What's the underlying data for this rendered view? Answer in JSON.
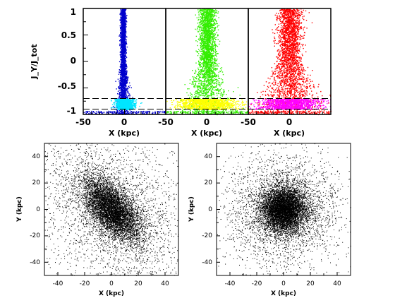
{
  "chart_data": [
    {
      "type": "scatter",
      "panel": "top-left",
      "xlabel": "X (kpc)",
      "ylabel": "J_Y/J_tot",
      "xlim": [
        -50,
        50
      ],
      "ylim": [
        -1,
        1
      ],
      "xticks": [
        "-50",
        "0"
      ],
      "yticks": [
        "-1",
        "-0.5",
        "0",
        "0.5",
        "1"
      ],
      "thresholds": [
        -0.7,
        -0.9
      ],
      "series": [
        {
          "color": "#0000cc",
          "x_center": -2,
          "x_spread": 3,
          "y_range": [
            -1,
            1
          ]
        },
        {
          "color": "#00e5ff",
          "x_center": 0,
          "x_spread": 9,
          "y_range": [
            -0.9,
            -0.7
          ]
        }
      ]
    },
    {
      "type": "scatter",
      "panel": "top-middle",
      "xlabel": "X (kpc)",
      "xlim": [
        -50,
        50
      ],
      "ylim": [
        -1,
        1
      ],
      "xticks": [
        "-50",
        "0"
      ],
      "thresholds": [
        -0.7,
        -0.9
      ],
      "series": [
        {
          "color": "#33ee00",
          "x_center": 0,
          "x_spread": 10,
          "y_range": [
            -1,
            1
          ]
        },
        {
          "color": "#ffff00",
          "x_center": 0,
          "x_spread": 30,
          "y_range": [
            -0.9,
            -0.7
          ]
        }
      ]
    },
    {
      "type": "scatter",
      "panel": "top-right",
      "xlabel": "X (kpc)",
      "xlim": [
        -50,
        50
      ],
      "ylim": [
        -1,
        1
      ],
      "xticks": [
        "-50",
        "0"
      ],
      "thresholds": [
        -0.7,
        -0.9
      ],
      "series": [
        {
          "color": "#ff0000",
          "x_center": 0,
          "x_spread": 14,
          "y_range": [
            -1,
            1
          ]
        },
        {
          "color": "#ff00ff",
          "x_center": 0,
          "x_spread": 30,
          "y_range": [
            -0.9,
            -0.7
          ]
        }
      ]
    },
    {
      "type": "scatter",
      "panel": "bottom-left",
      "xlabel": "X (kpc)",
      "ylabel": "Y (kpc)",
      "xlim": [
        -50,
        50
      ],
      "ylim": [
        -50,
        50
      ],
      "xticks": [
        "-40",
        "-20",
        "0",
        "20",
        "40"
      ],
      "yticks": [
        "-40",
        "-20",
        "0",
        "20",
        "40"
      ],
      "series": [
        {
          "color": "#000000",
          "shape": "elongated bar",
          "orientation_deg": -50,
          "major_scale": 14,
          "minor_scale": 7
        }
      ]
    },
    {
      "type": "scatter",
      "panel": "bottom-right",
      "xlabel": "X (kpc)",
      "ylabel": "Y (kpc)",
      "xlim": [
        -50,
        50
      ],
      "ylim": [
        -50,
        50
      ],
      "xticks": [
        "-40",
        "-20",
        "0",
        "20",
        "40"
      ],
      "yticks": [
        "-40",
        "-20",
        "0",
        "20",
        "40"
      ],
      "series": [
        {
          "color": "#000000",
          "shape": "round spheroid",
          "major_scale": 8,
          "minor_scale": 8
        }
      ]
    }
  ]
}
